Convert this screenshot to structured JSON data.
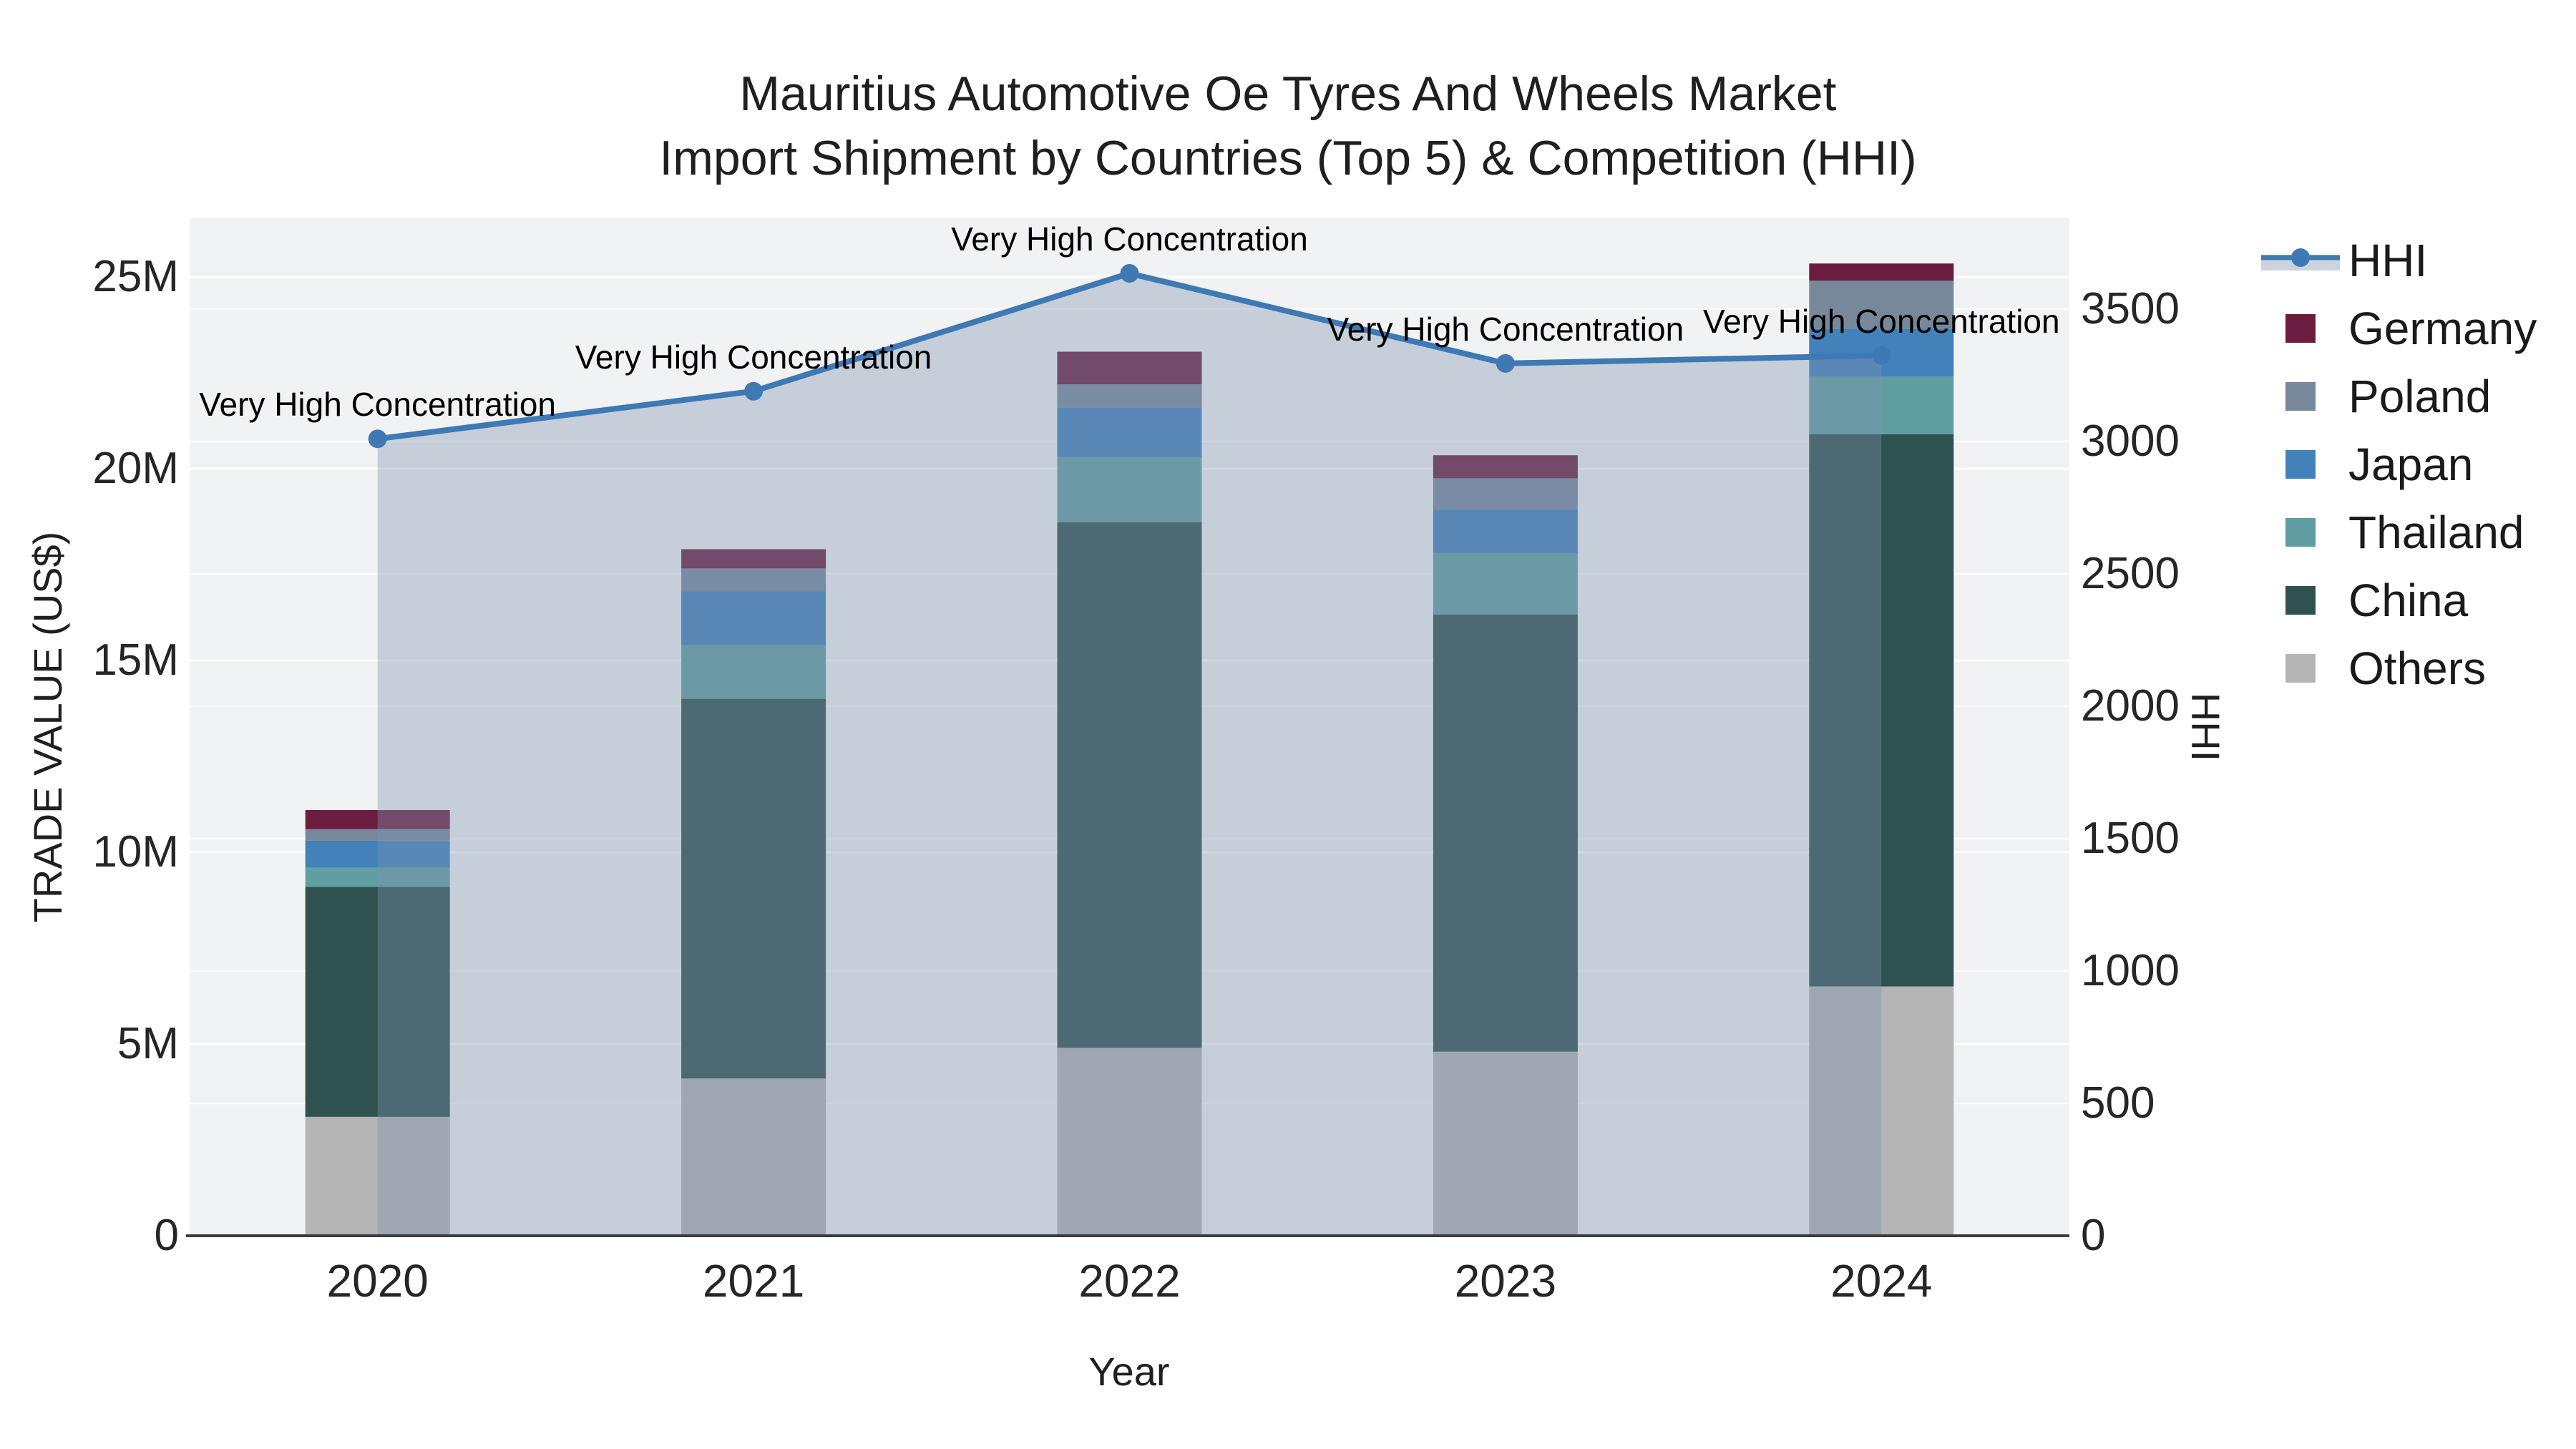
{
  "chart_data": {
    "type": "bar+line",
    "title_line1": "Mauritius Automotive Oe Tyres And Wheels Market",
    "title_line2": "Import Shipment by Countries (Top 5) & Competition (HHI)",
    "categories": [
      "2020",
      "2021",
      "2022",
      "2023",
      "2024"
    ],
    "xlabel": "Year",
    "left_axis": {
      "label": "TRADE VALUE (US$)",
      "tick_labels": [
        "0",
        "5M",
        "10M",
        "15M",
        "20M",
        "25M"
      ],
      "tick_values_musd": [
        0,
        5,
        10,
        15,
        20,
        25
      ],
      "range_musd": [
        0,
        26.5
      ],
      "grid": true
    },
    "right_axis": {
      "label": "HHI",
      "tick_labels": [
        "0",
        "500",
        "1000",
        "1500",
        "2000",
        "2500",
        "3000",
        "3500"
      ],
      "tick_values": [
        0,
        500,
        1000,
        1500,
        2000,
        2500,
        3000,
        3500
      ],
      "range": [
        0,
        3845
      ],
      "grid": true
    },
    "bar_series_bottom_to_top": [
      {
        "name": "Others",
        "color": "#b4b4b4",
        "values_musd": [
          3.1,
          4.1,
          4.9,
          4.8,
          6.5
        ]
      },
      {
        "name": "China",
        "color": "#2f514f",
        "values_musd": [
          6.0,
          9.9,
          13.7,
          11.4,
          14.4
        ]
      },
      {
        "name": "Thailand",
        "color": "#5f9fa1",
        "values_musd": [
          0.5,
          1.4,
          1.7,
          1.6,
          1.5
        ]
      },
      {
        "name": "Japan",
        "color": "#4381ba",
        "values_musd": [
          0.7,
          1.4,
          1.3,
          1.15,
          1.25
        ]
      },
      {
        "name": "Poland",
        "color": "#77889b",
        "values_musd": [
          0.3,
          0.6,
          0.6,
          0.8,
          1.25
        ]
      },
      {
        "name": "Germany",
        "color": "#6b1d3f",
        "values_musd": [
          0.5,
          0.5,
          0.85,
          0.6,
          0.45
        ]
      }
    ],
    "bar_totals_musd": [
      11.1,
      17.9,
      23.05,
      20.35,
      25.35
    ],
    "line_series": {
      "name": "HHI",
      "axis": "right",
      "color": "#3e79b4",
      "area_fill": "rgba(125,147,175,0.38)",
      "values": [
        3010,
        3190,
        3635,
        3295,
        3325
      ]
    },
    "annotations": [
      {
        "year": "2020",
        "text": "Very High Concentration"
      },
      {
        "year": "2021",
        "text": "Very High Concentration"
      },
      {
        "year": "2022",
        "text": "Very High Concentration"
      },
      {
        "year": "2023",
        "text": "Very High Concentration"
      },
      {
        "year": "2024",
        "text": "Very High Concentration"
      }
    ],
    "legend_order": [
      "HHI",
      "Germany",
      "Poland",
      "Japan",
      "Thailand",
      "China",
      "Others"
    ],
    "legend_position": "right",
    "plot_bg_color": "#f1f2f3"
  }
}
